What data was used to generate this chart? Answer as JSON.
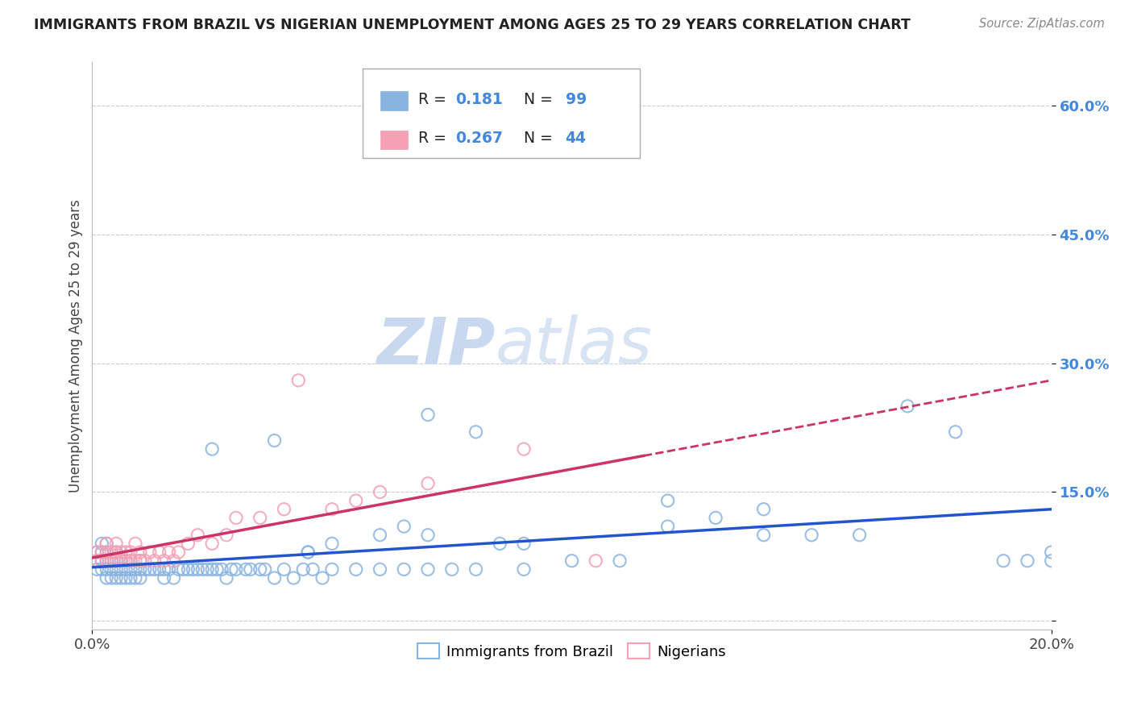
{
  "title": "IMMIGRANTS FROM BRAZIL VS NIGERIAN UNEMPLOYMENT AMONG AGES 25 TO 29 YEARS CORRELATION CHART",
  "source": "Source: ZipAtlas.com",
  "ylabel": "Unemployment Among Ages 25 to 29 years",
  "xlim": [
    0.0,
    0.2
  ],
  "ylim": [
    -0.01,
    0.65
  ],
  "ytick_vals": [
    0.0,
    0.15,
    0.3,
    0.45,
    0.6
  ],
  "ytick_labels": [
    "",
    "15.0%",
    "30.0%",
    "45.0%",
    "60.0%"
  ],
  "brazil_R": "0.181",
  "brazil_N": "99",
  "nigeria_R": "0.267",
  "nigeria_N": "44",
  "brazil_color": "#8ab4e0",
  "nigeria_color": "#f4a0b5",
  "brazil_line_color": "#2255cc",
  "nigeria_line_color": "#cc3366",
  "watermark_color": "#c8d8ee",
  "background_color": "#ffffff",
  "grid_color": "#cccccc",
  "title_color": "#222222",
  "source_color": "#888888",
  "tick_color": "#4488dd",
  "brazil_scatter": {
    "x": [
      0.001,
      0.001,
      0.001,
      0.002,
      0.002,
      0.002,
      0.002,
      0.003,
      0.003,
      0.003,
      0.003,
      0.003,
      0.004,
      0.004,
      0.004,
      0.005,
      0.005,
      0.005,
      0.005,
      0.006,
      0.006,
      0.006,
      0.007,
      0.007,
      0.007,
      0.008,
      0.008,
      0.008,
      0.009,
      0.009,
      0.01,
      0.01,
      0.01,
      0.011,
      0.012,
      0.013,
      0.014,
      0.015,
      0.015,
      0.016,
      0.017,
      0.018,
      0.019,
      0.02,
      0.021,
      0.022,
      0.023,
      0.024,
      0.025,
      0.026,
      0.027,
      0.028,
      0.029,
      0.03,
      0.032,
      0.033,
      0.035,
      0.036,
      0.038,
      0.04,
      0.042,
      0.044,
      0.046,
      0.048,
      0.05,
      0.055,
      0.06,
      0.065,
      0.07,
      0.075,
      0.08,
      0.09,
      0.1,
      0.11,
      0.12,
      0.13,
      0.14,
      0.15,
      0.16,
      0.17,
      0.18,
      0.19,
      0.195,
      0.2,
      0.038,
      0.025,
      0.07,
      0.08,
      0.12,
      0.14,
      0.045,
      0.045,
      0.05,
      0.06,
      0.065,
      0.07,
      0.085,
      0.09,
      0.2
    ],
    "y": [
      0.06,
      0.07,
      0.08,
      0.06,
      0.07,
      0.08,
      0.09,
      0.05,
      0.06,
      0.07,
      0.08,
      0.09,
      0.05,
      0.06,
      0.07,
      0.05,
      0.06,
      0.07,
      0.08,
      0.05,
      0.06,
      0.07,
      0.05,
      0.06,
      0.07,
      0.05,
      0.06,
      0.07,
      0.05,
      0.06,
      0.05,
      0.06,
      0.07,
      0.06,
      0.06,
      0.06,
      0.06,
      0.05,
      0.06,
      0.06,
      0.05,
      0.06,
      0.06,
      0.06,
      0.06,
      0.06,
      0.06,
      0.06,
      0.06,
      0.06,
      0.06,
      0.05,
      0.06,
      0.06,
      0.06,
      0.06,
      0.06,
      0.06,
      0.05,
      0.06,
      0.05,
      0.06,
      0.06,
      0.05,
      0.06,
      0.06,
      0.06,
      0.06,
      0.06,
      0.06,
      0.06,
      0.06,
      0.07,
      0.07,
      0.11,
      0.12,
      0.1,
      0.1,
      0.1,
      0.25,
      0.22,
      0.07,
      0.07,
      0.07,
      0.21,
      0.2,
      0.24,
      0.22,
      0.14,
      0.13,
      0.08,
      0.08,
      0.09,
      0.1,
      0.11,
      0.1,
      0.09,
      0.09,
      0.08
    ]
  },
  "nigeria_scatter": {
    "x": [
      0.001,
      0.001,
      0.002,
      0.002,
      0.003,
      0.003,
      0.003,
      0.004,
      0.004,
      0.005,
      0.005,
      0.005,
      0.006,
      0.006,
      0.007,
      0.007,
      0.008,
      0.008,
      0.009,
      0.009,
      0.01,
      0.01,
      0.011,
      0.012,
      0.013,
      0.014,
      0.015,
      0.016,
      0.017,
      0.018,
      0.02,
      0.022,
      0.025,
      0.028,
      0.03,
      0.035,
      0.04,
      0.043,
      0.05,
      0.055,
      0.06,
      0.07,
      0.09,
      0.105
    ],
    "y": [
      0.07,
      0.08,
      0.07,
      0.08,
      0.07,
      0.08,
      0.09,
      0.07,
      0.08,
      0.07,
      0.08,
      0.09,
      0.07,
      0.08,
      0.07,
      0.08,
      0.07,
      0.08,
      0.07,
      0.09,
      0.07,
      0.08,
      0.07,
      0.08,
      0.07,
      0.08,
      0.07,
      0.08,
      0.07,
      0.08,
      0.09,
      0.1,
      0.09,
      0.1,
      0.12,
      0.12,
      0.13,
      0.28,
      0.13,
      0.14,
      0.15,
      0.16,
      0.2,
      0.07
    ]
  },
  "nigeria_line_x_solid_end": 0.115
}
